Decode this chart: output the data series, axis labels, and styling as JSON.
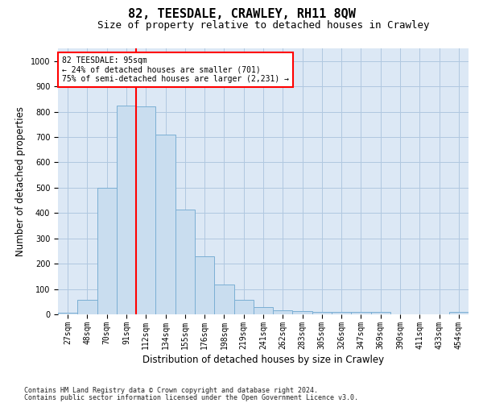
{
  "title": "82, TEESDALE, CRAWLEY, RH11 8QW",
  "subtitle": "Size of property relative to detached houses in Crawley",
  "xlabel": "Distribution of detached houses by size in Crawley",
  "ylabel": "Number of detached properties",
  "categories": [
    "27sqm",
    "48sqm",
    "70sqm",
    "91sqm",
    "112sqm",
    "134sqm",
    "155sqm",
    "176sqm",
    "198sqm",
    "219sqm",
    "241sqm",
    "262sqm",
    "283sqm",
    "305sqm",
    "326sqm",
    "347sqm",
    "369sqm",
    "390sqm",
    "411sqm",
    "433sqm",
    "454sqm"
  ],
  "values": [
    5,
    57,
    500,
    825,
    820,
    710,
    415,
    230,
    117,
    57,
    30,
    15,
    12,
    10,
    10,
    10,
    8,
    0,
    0,
    0,
    8
  ],
  "bar_color": "#c9ddef",
  "bar_edge_color": "#7bafd4",
  "vline_x_index": 3,
  "vline_color": "red",
  "annotation_text": "82 TEESDALE: 95sqm\n← 24% of detached houses are smaller (701)\n75% of semi-detached houses are larger (2,231) →",
  "annotation_box_color": "white",
  "annotation_box_edge": "red",
  "ylim": [
    0,
    1050
  ],
  "yticks": [
    0,
    100,
    200,
    300,
    400,
    500,
    600,
    700,
    800,
    900,
    1000
  ],
  "grid_color": "#b0c8e0",
  "background_color": "#dce8f5",
  "footnote1": "Contains HM Land Registry data © Crown copyright and database right 2024.",
  "footnote2": "Contains public sector information licensed under the Open Government Licence v3.0.",
  "title_fontsize": 11,
  "subtitle_fontsize": 9,
  "axis_label_fontsize": 8.5,
  "tick_fontsize": 7,
  "annot_fontsize": 7
}
